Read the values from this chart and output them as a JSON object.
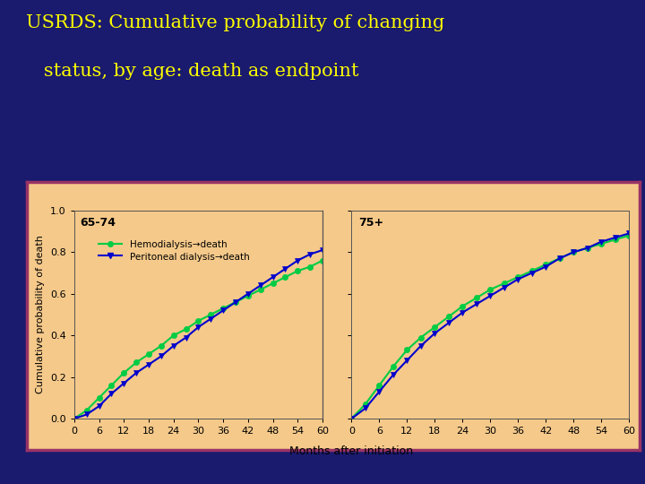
{
  "title_line1": "USRDS: Cumulative probability of changing",
  "title_line2": "   status, by age: death as endpoint",
  "title_color": "#FFFF00",
  "bg_color": "#1a1a6e",
  "plot_bg_color": "#f5c98a",
  "plot_border_color": "#993366",
  "xlabel": "Months after initiation",
  "ylabel": "Cumulative probability of death",
  "xlim": [
    0,
    60
  ],
  "ylim": [
    0.0,
    1.0
  ],
  "xticks": [
    0,
    6,
    12,
    18,
    24,
    30,
    36,
    42,
    48,
    54,
    60
  ],
  "yticks": [
    0.0,
    0.2,
    0.4,
    0.6,
    0.8,
    1.0
  ],
  "panel1_label": "65-74",
  "panel2_label": "75+",
  "hemo_color": "#00cc44",
  "perit_color": "#0000cc",
  "legend_hemo": "Hemodialysis→death",
  "legend_perit": "Peritoneal dialysis→death",
  "months": [
    0,
    3,
    6,
    9,
    12,
    15,
    18,
    21,
    24,
    27,
    30,
    33,
    36,
    39,
    42,
    45,
    48,
    51,
    54,
    57,
    60
  ],
  "hemo_65_74": [
    0.0,
    0.04,
    0.1,
    0.16,
    0.22,
    0.27,
    0.31,
    0.35,
    0.4,
    0.43,
    0.47,
    0.5,
    0.53,
    0.56,
    0.59,
    0.62,
    0.65,
    0.68,
    0.71,
    0.73,
    0.76
  ],
  "perit_65_74": [
    0.0,
    0.02,
    0.06,
    0.12,
    0.17,
    0.22,
    0.26,
    0.3,
    0.35,
    0.39,
    0.44,
    0.48,
    0.52,
    0.56,
    0.6,
    0.64,
    0.68,
    0.72,
    0.76,
    0.79,
    0.81
  ],
  "hemo_75plus": [
    0.0,
    0.07,
    0.16,
    0.25,
    0.33,
    0.39,
    0.44,
    0.49,
    0.54,
    0.58,
    0.62,
    0.65,
    0.68,
    0.71,
    0.74,
    0.77,
    0.8,
    0.82,
    0.84,
    0.86,
    0.88
  ],
  "perit_75plus": [
    0.0,
    0.05,
    0.13,
    0.21,
    0.28,
    0.35,
    0.41,
    0.46,
    0.51,
    0.55,
    0.59,
    0.63,
    0.67,
    0.7,
    0.73,
    0.77,
    0.8,
    0.82,
    0.85,
    0.87,
    0.89
  ]
}
